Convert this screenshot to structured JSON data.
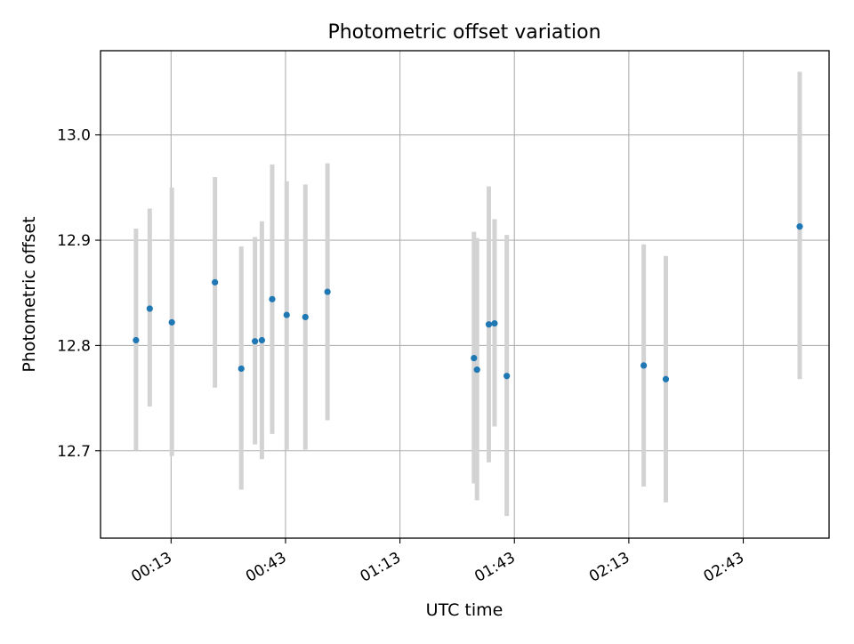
{
  "chart_data": {
    "type": "scatter",
    "title": "Photometric offset variation",
    "xlabel": "UTC time",
    "ylabel": "Photometric offset",
    "x_unit": "minutes after 00:00 UTC",
    "xlim": [
      -5.5,
      185.5
    ],
    "ylim": [
      12.617,
      13.08
    ],
    "x_ticks": [
      {
        "value": 13,
        "label": "00:13"
      },
      {
        "value": 43,
        "label": "00:43"
      },
      {
        "value": 73,
        "label": "01:13"
      },
      {
        "value": 103,
        "label": "01:43"
      },
      {
        "value": 133,
        "label": "02:13"
      },
      {
        "value": 163,
        "label": "02:43"
      }
    ],
    "y_ticks": [
      {
        "value": 12.7,
        "label": "12.7"
      },
      {
        "value": 12.8,
        "label": "12.8"
      },
      {
        "value": 12.9,
        "label": "12.9"
      },
      {
        "value": 13.0,
        "label": "13.0"
      }
    ],
    "grid": true,
    "marker_color": "#1f77b4",
    "errorbar_color": "#d3d3d3",
    "points": [
      {
        "x": 3.8,
        "y": 12.805,
        "low": 12.7,
        "high": 12.911
      },
      {
        "x": 7.4,
        "y": 12.835,
        "low": 12.742,
        "high": 12.93
      },
      {
        "x": 13.2,
        "y": 12.822,
        "low": 12.695,
        "high": 12.95
      },
      {
        "x": 24.5,
        "y": 12.86,
        "low": 12.76,
        "high": 12.96
      },
      {
        "x": 31.4,
        "y": 12.778,
        "low": 12.663,
        "high": 12.894
      },
      {
        "x": 35.0,
        "y": 12.804,
        "low": 12.706,
        "high": 12.903
      },
      {
        "x": 36.8,
        "y": 12.805,
        "low": 12.692,
        "high": 12.918
      },
      {
        "x": 39.5,
        "y": 12.844,
        "low": 12.716,
        "high": 12.972
      },
      {
        "x": 43.3,
        "y": 12.829,
        "low": 12.701,
        "high": 12.956
      },
      {
        "x": 48.2,
        "y": 12.827,
        "low": 12.701,
        "high": 12.953
      },
      {
        "x": 54.0,
        "y": 12.851,
        "low": 12.729,
        "high": 12.973
      },
      {
        "x": 92.4,
        "y": 12.788,
        "low": 12.669,
        "high": 12.908
      },
      {
        "x": 93.2,
        "y": 12.777,
        "low": 12.653,
        "high": 12.902
      },
      {
        "x": 96.3,
        "y": 12.82,
        "low": 12.689,
        "high": 12.951
      },
      {
        "x": 97.8,
        "y": 12.821,
        "low": 12.723,
        "high": 12.92
      },
      {
        "x": 101.0,
        "y": 12.771,
        "low": 12.638,
        "high": 12.905
      },
      {
        "x": 136.9,
        "y": 12.781,
        "low": 12.666,
        "high": 12.896
      },
      {
        "x": 142.7,
        "y": 12.768,
        "low": 12.651,
        "high": 12.885
      },
      {
        "x": 177.8,
        "y": 12.913,
        "low": 12.768,
        "high": 13.06
      }
    ]
  }
}
